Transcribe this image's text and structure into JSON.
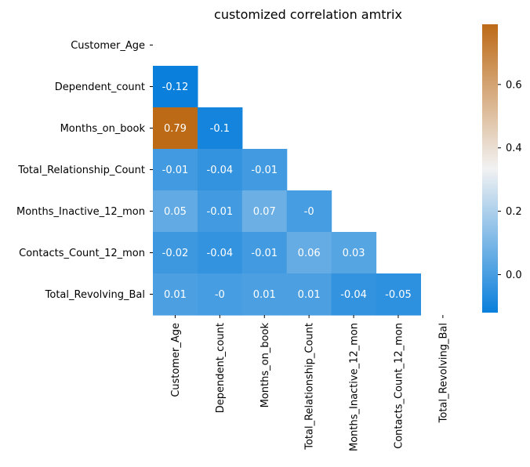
{
  "chart_data": {
    "type": "heatmap",
    "title": "customized correlation amtrix",
    "xlabel": "",
    "ylabel": "",
    "variables": [
      "Customer_Age",
      "Dependent_count",
      "Months_on_book",
      "Total_Relationship_Count",
      "Months_Inactive_12_mon",
      "Contacts_Count_12_mon",
      "Total_Revolving_Bal"
    ],
    "mask": "upper-triangle-including-diagonal",
    "matrix": [
      [
        null,
        null,
        null,
        null,
        null,
        null,
        null
      ],
      [
        -0.12,
        null,
        null,
        null,
        null,
        null,
        null
      ],
      [
        0.79,
        -0.1,
        null,
        null,
        null,
        null,
        null
      ],
      [
        -0.01,
        -0.04,
        -0.01,
        null,
        null,
        null,
        null
      ],
      [
        0.05,
        -0.01,
        0.07,
        0.0,
        null,
        null,
        null
      ],
      [
        -0.02,
        -0.04,
        -0.01,
        0.06,
        0.03,
        null,
        null
      ],
      [
        0.01,
        0.0,
        0.01,
        0.01,
        -0.04,
        -0.05,
        null
      ]
    ],
    "cell_labels": [
      [
        null,
        null,
        null,
        null,
        null,
        null,
        null
      ],
      [
        "-0.12",
        null,
        null,
        null,
        null,
        null,
        null
      ],
      [
        "0.79",
        "-0.1",
        null,
        null,
        null,
        null,
        null
      ],
      [
        "-0.01",
        "-0.04",
        "-0.01",
        null,
        null,
        null,
        null
      ],
      [
        "0.05",
        "-0.01",
        "0.07",
        "-0",
        null,
        null,
        null
      ],
      [
        "-0.02",
        "-0.04",
        "-0.01",
        "0.06",
        "0.03",
        null,
        null
      ],
      [
        "0.01",
        "-0",
        "0.01",
        "0.01",
        "-0.04",
        "-0.05",
        null
      ]
    ],
    "colorbar": {
      "vmin": -0.12,
      "vmax": 0.79,
      "ticks": [
        0.0,
        0.2,
        0.4,
        0.6
      ],
      "tick_labels": [
        "0.0",
        "0.2",
        "0.4",
        "0.6"
      ],
      "low_color": "#0a7fdb",
      "mid_color": "#f2f2f2",
      "high_color": "#bd6a16",
      "center": 0.335
    },
    "grid": false,
    "legend": "colorbar-right"
  }
}
